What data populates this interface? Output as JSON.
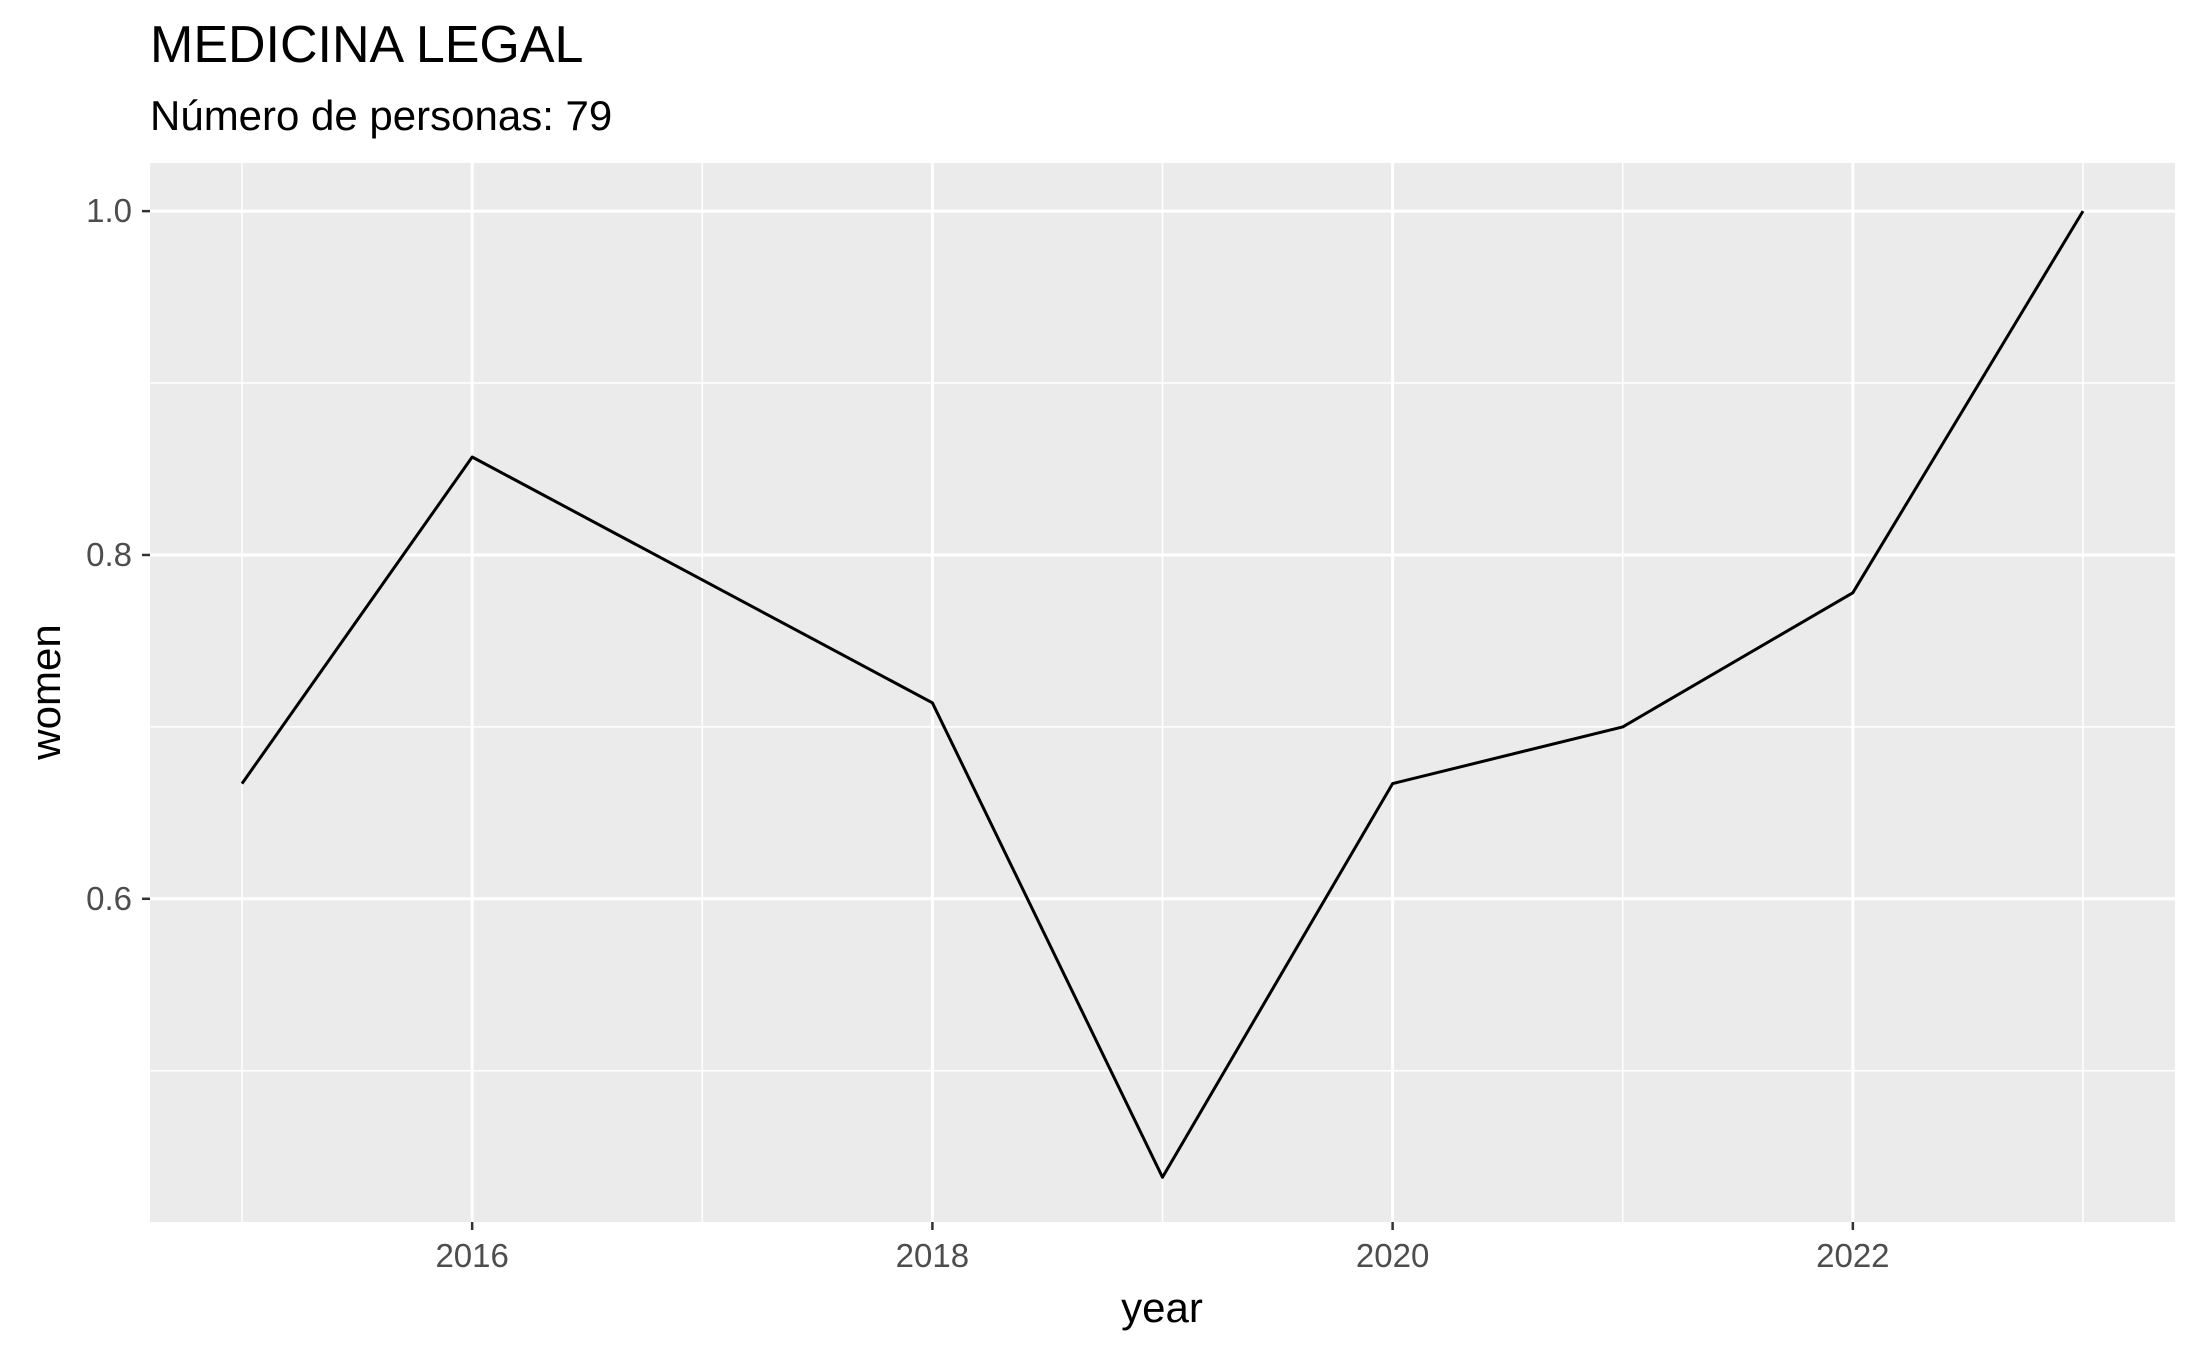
{
  "chart_data": {
    "type": "line",
    "title": "MEDICINA LEGAL",
    "subtitle": "Número de personas: 79",
    "xlabel": "year",
    "ylabel": "women",
    "x": [
      2015,
      2016,
      2018,
      2019,
      2020,
      2021,
      2022,
      2023
    ],
    "series": [
      {
        "values": [
          0.667,
          0.857,
          0.714,
          0.438,
          0.667,
          0.7,
          0.778,
          1.0
        ]
      }
    ],
    "xlim": [
      2014.6,
      2023.4
    ],
    "ylim": [
      0.412,
      1.028
    ],
    "x_ticks": [
      2016,
      2018,
      2020,
      2022
    ],
    "x_tick_labels": [
      "2016",
      "2018",
      "2020",
      "2022"
    ],
    "x_minor_ticks": [
      2015,
      2017,
      2019,
      2021,
      2023
    ],
    "y_ticks": [
      0.6,
      0.8,
      1.0
    ],
    "y_tick_labels": [
      "0.6",
      "0.8",
      "1.0"
    ],
    "y_minor_ticks": [
      0.5,
      0.7,
      0.9
    ],
    "grid": true,
    "legend": "none",
    "colors": {
      "panel": "#ebebeb",
      "grid": "#ffffff",
      "line": "#000000",
      "tick_text": "#4d4d4d"
    }
  }
}
